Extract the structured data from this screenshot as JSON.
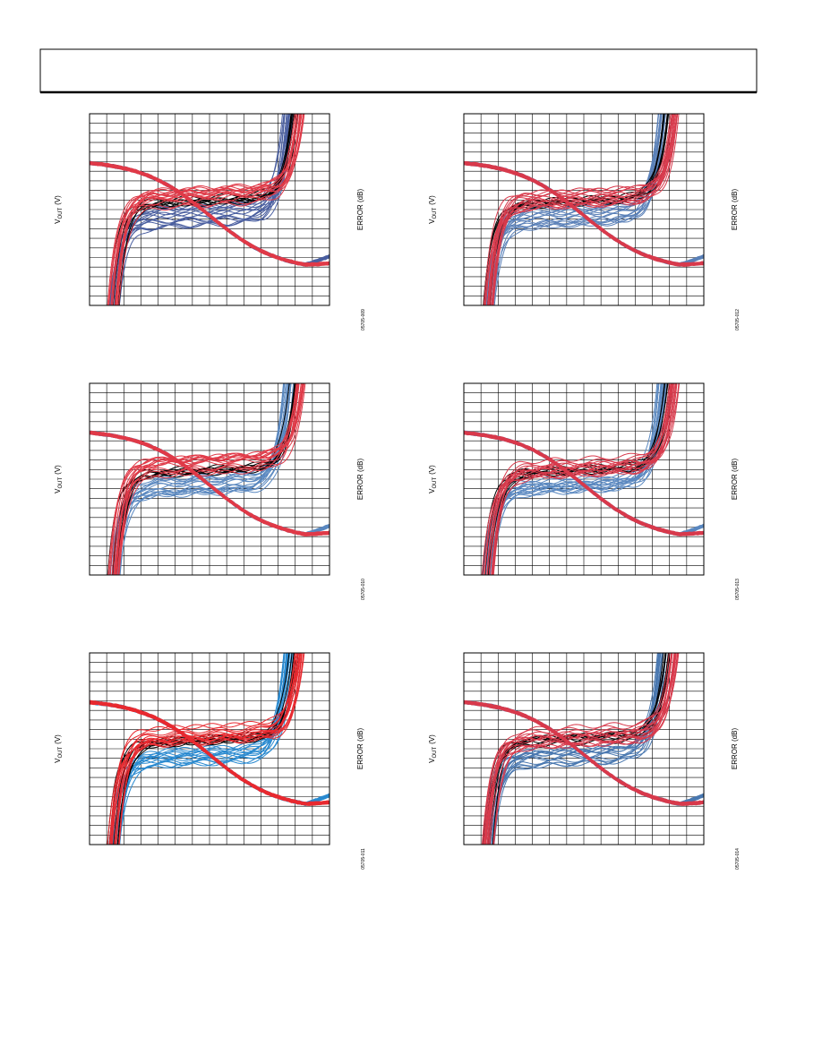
{
  "charts": [
    {
      "y_label": {
        "main": "V",
        "sub": "OUT",
        "unit": "(V)"
      },
      "y2_label": "ERROR (dB)",
      "figure_code": "05705-009"
    },
    {
      "y_label": {
        "main": "V",
        "sub": "OUT",
        "unit": "(V)"
      },
      "y2_label": "ERROR (dB)",
      "figure_code": "05705-012"
    },
    {
      "y_label": {
        "main": "V",
        "sub": "OUT",
        "unit": "(V)"
      },
      "y2_label": "ERROR (dB)",
      "figure_code": "05705-010"
    },
    {
      "y_label": {
        "main": "V",
        "sub": "OUT",
        "unit": "(V)"
      },
      "y2_label": "ERROR (dB)",
      "figure_code": "05705-013"
    },
    {
      "y_label": {
        "main": "V",
        "sub": "OUT",
        "unit": "(V)"
      },
      "y2_label": "ERROR (dB)",
      "figure_code": "05705-011"
    },
    {
      "y_label": {
        "main": "V",
        "sub": "OUT",
        "unit": "(V)"
      },
      "y2_label": "ERROR (dB)",
      "figure_code": "05705-014"
    }
  ]
}
